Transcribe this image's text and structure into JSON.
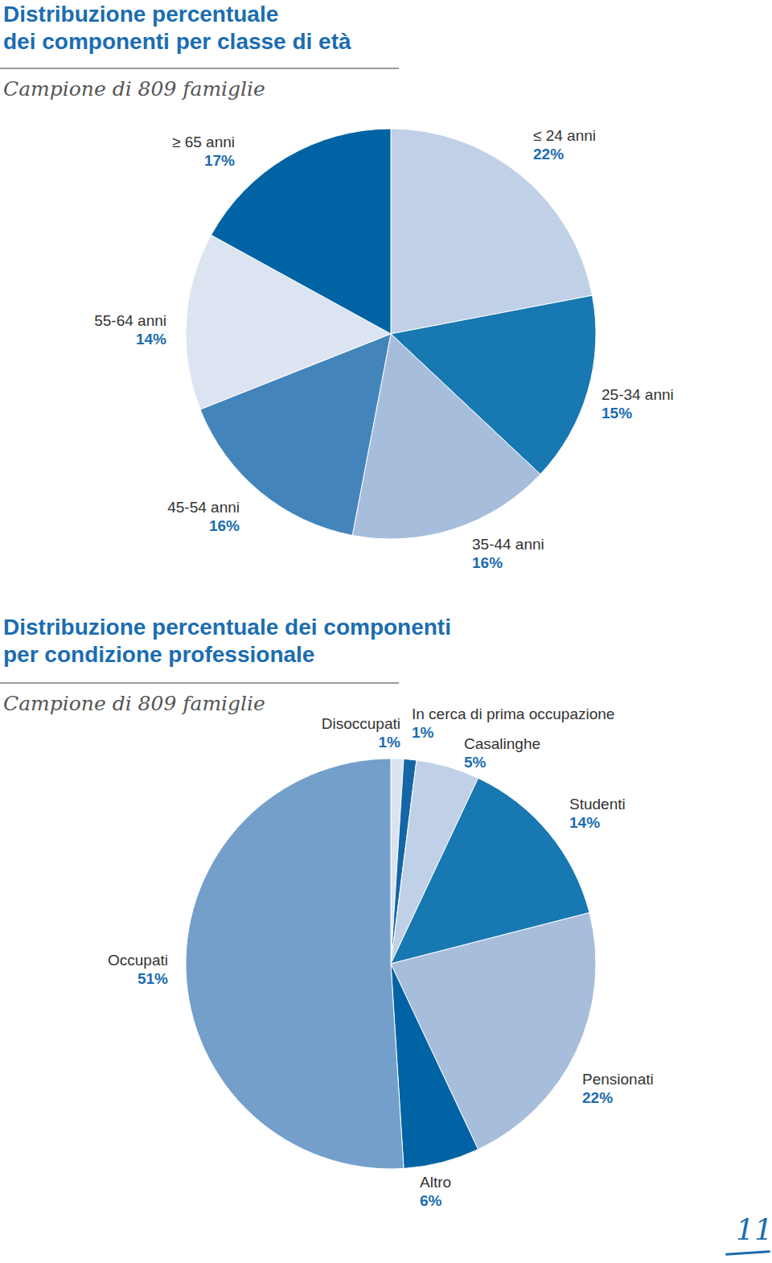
{
  "chart_data": [
    {
      "type": "pie",
      "title": "Distribuzione percentuale\ndei componenti per classe di età",
      "subtitle": "Campione di 809 famiglie",
      "categories": [
        "≤ 24 anni",
        "25-34 anni",
        "35-44 anni",
        "45-54 anni",
        "55-64 anni",
        "≥ 65 anni"
      ],
      "values": [
        22,
        15,
        16,
        16,
        14,
        17
      ],
      "value_labels": [
        "22%",
        "15%",
        "16%",
        "16%",
        "14%",
        "17%"
      ],
      "colors": [
        "#c0d0e6",
        "#1778b2",
        "#a6bddc",
        "#4385ba",
        "#dde4f1",
        "#0063a3"
      ]
    },
    {
      "type": "pie",
      "title": "Distribuzione percentuale dei componenti\nper condizione professionale",
      "subtitle": "Campione di 809 famiglie",
      "categories": [
        "Disoccupati",
        "In cerca di prima occupazione",
        "Casalinghe",
        "Studenti",
        "Pensionati",
        "Altro",
        "Occupati"
      ],
      "values": [
        1,
        1,
        5,
        14,
        22,
        6,
        51
      ],
      "value_labels": [
        "1%",
        "1%",
        "5%",
        "14%",
        "22%",
        "6%",
        "51%"
      ],
      "colors": [
        "#dbe3f0",
        "#1466a6",
        "#c0d0e6",
        "#1778b2",
        "#a6bddc",
        "#0063a3",
        "#739fca"
      ]
    }
  ],
  "page": "11"
}
